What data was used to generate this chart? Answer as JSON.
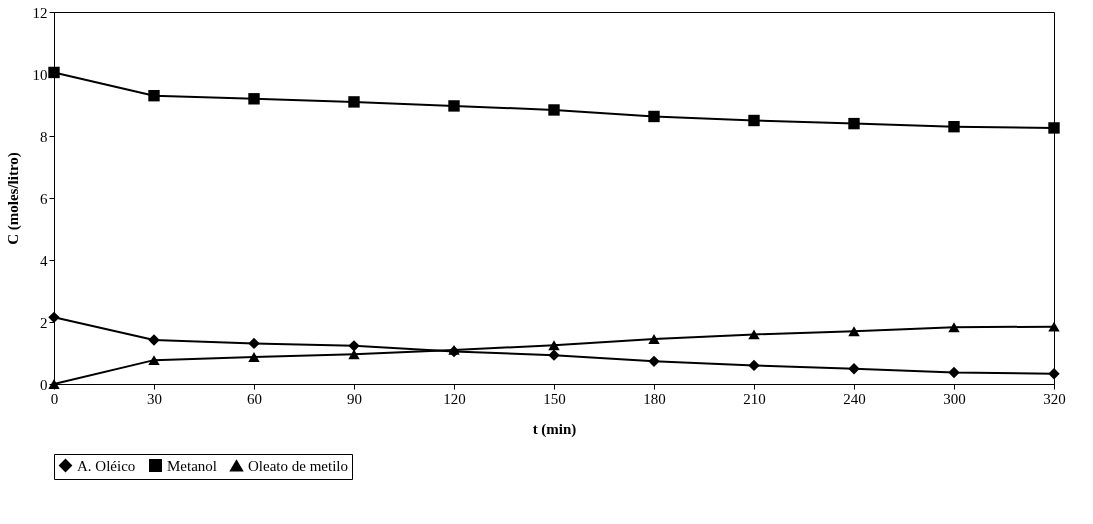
{
  "chart_data": {
    "type": "line",
    "xlabel": "t (min)",
    "ylabel": "C (moles/litro)",
    "categories": [
      "0",
      "30",
      "60",
      "90",
      "120",
      "150",
      "180",
      "210",
      "240",
      "300",
      "320"
    ],
    "ylim": [
      0,
      12
    ],
    "yticks": [
      0,
      2,
      4,
      6,
      8,
      10,
      12
    ],
    "grid": false,
    "line_style": "solid",
    "legend": "bottom",
    "series": [
      {
        "name": "A. Oléico",
        "color": "#000000",
        "marker": "diamond",
        "values": [
          2.15,
          1.42,
          1.31,
          1.23,
          1.05,
          0.93,
          0.73,
          0.6,
          0.49,
          0.37,
          0.33
        ]
      },
      {
        "name": "Metanol",
        "color": "#000000",
        "marker": "square",
        "values": [
          10.05,
          9.3,
          9.2,
          9.1,
          8.97,
          8.84,
          8.63,
          8.5,
          8.4,
          8.3,
          8.26
        ]
      },
      {
        "name": "Oleato de metilo",
        "color": "#000000",
        "marker": "triangle",
        "values": [
          0,
          0.77,
          0.87,
          0.96,
          1.1,
          1.25,
          1.45,
          1.6,
          1.7,
          1.83,
          1.85
        ]
      }
    ]
  }
}
